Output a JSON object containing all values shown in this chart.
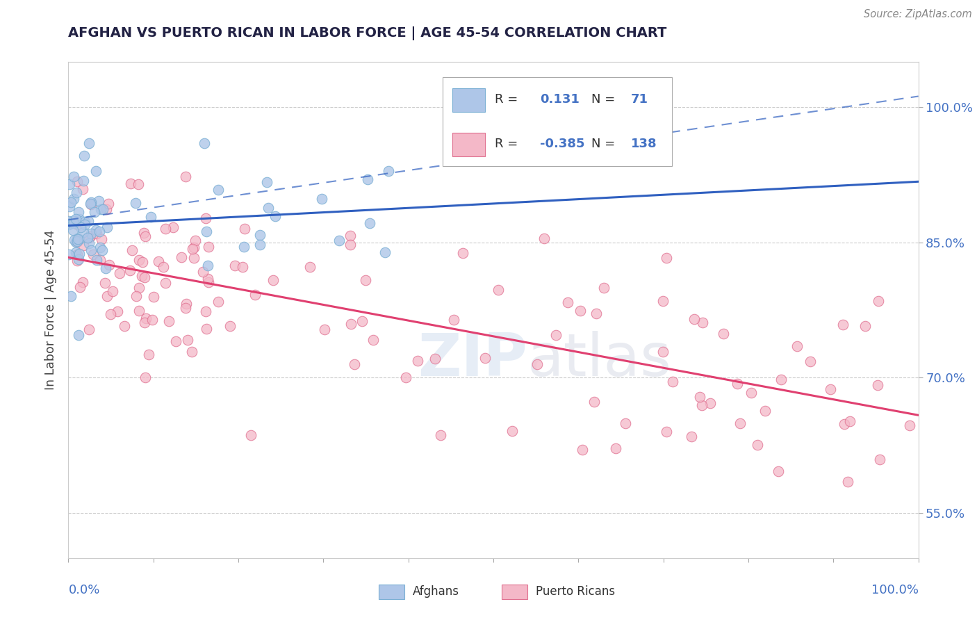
{
  "title": "AFGHAN VS PUERTO RICAN IN LABOR FORCE | AGE 45-54 CORRELATION CHART",
  "source": "Source: ZipAtlas.com",
  "ylabel": "In Labor Force | Age 45-54",
  "watermark": "ZIPatlas",
  "xlim": [
    0.0,
    1.0
  ],
  "ylim": [
    0.5,
    1.05
  ],
  "afghan_color": "#aec6e8",
  "afghan_edge": "#7aafd4",
  "puerto_rican_color": "#f4b8c8",
  "puerto_rican_edge": "#e07090",
  "trend_afghan_color": "#3060c0",
  "trend_puerto_color": "#e04070",
  "right_tick_color": "#4472c4",
  "title_color": "#222244",
  "source_color": "#888888",
  "legend_box_edge": "#aaaaaa",
  "r1_val": "0.131",
  "n1_val": "71",
  "r2_val": "-0.385",
  "n2_val": "138"
}
